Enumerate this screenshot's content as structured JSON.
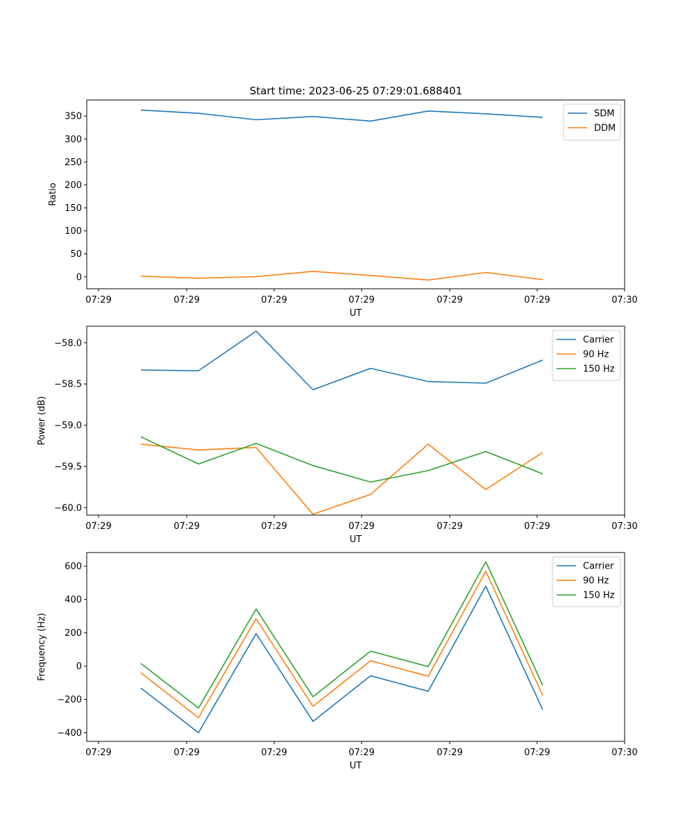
{
  "figure": {
    "title": "Start time: 2023-06-25 07:29:01.688401"
  },
  "chart_data": [
    {
      "type": "line",
      "xlabel": "UT",
      "ylabel": "Ratio",
      "x_tick_labels": [
        "07:29",
        "07:29",
        "07:29",
        "07:29",
        "07:29",
        "07:29",
        "07:30"
      ],
      "y_ticks": [
        0,
        50,
        100,
        150,
        200,
        250,
        300,
        350
      ],
      "y_tick_labels": [
        "0",
        "50",
        "100",
        "150",
        "200",
        "250",
        "300",
        "350"
      ],
      "ylim": [
        -26,
        385
      ],
      "legend_position": "upper right",
      "grid": false,
      "series": [
        {
          "name": "SDM",
          "color": "#1f77b4",
          "values": [
            363,
            356,
            342,
            349,
            339,
            361,
            355,
            347
          ]
        },
        {
          "name": "DDM",
          "color": "#ff7f0e",
          "values": [
            1.5,
            -3,
            0.5,
            12,
            3,
            -7,
            9.5,
            -6
          ]
        }
      ]
    },
    {
      "type": "line",
      "xlabel": "UT",
      "ylabel": "Power (dB)",
      "x_tick_labels": [
        "07:29",
        "07:29",
        "07:29",
        "07:29",
        "07:29",
        "07:29",
        "07:30"
      ],
      "y_ticks": [
        -58.0,
        -58.5,
        -59.0,
        -59.5,
        -60.0
      ],
      "y_tick_labels": [
        "−58.0",
        "−58.5",
        "−59.0",
        "−59.5",
        "−60.0"
      ],
      "ylim": [
        -60.09,
        -57.8
      ],
      "legend_position": "upper right",
      "grid": false,
      "series": [
        {
          "name": "Carrier",
          "color": "#1f77b4",
          "values": [
            -58.33,
            -58.34,
            -57.86,
            -58.57,
            -58.31,
            -58.47,
            -58.49,
            -58.21
          ]
        },
        {
          "name": "90 Hz",
          "color": "#ff7f0e",
          "values": [
            -59.23,
            -59.3,
            -59.27,
            -60.08,
            -59.84,
            -59.23,
            -59.78,
            -59.33
          ]
        },
        {
          "name": "150 Hz",
          "color": "#2ca02c",
          "values": [
            -59.14,
            -59.47,
            -59.22,
            -59.49,
            -59.69,
            -59.55,
            -59.32,
            -59.59
          ]
        }
      ]
    },
    {
      "type": "line",
      "xlabel": "UT",
      "ylabel": "Frequency (Hz)",
      "x_tick_labels": [
        "07:29",
        "07:29",
        "07:29",
        "07:29",
        "07:29",
        "07:29",
        "07:30"
      ],
      "y_ticks": [
        -400,
        -200,
        0,
        200,
        400,
        600
      ],
      "y_tick_labels": [
        "−400",
        "−200",
        "0",
        "200",
        "400",
        "600"
      ],
      "ylim": [
        -452,
        682
      ],
      "legend_position": "upper right",
      "grid": false,
      "series": [
        {
          "name": "Carrier",
          "color": "#1f77b4",
          "values": [
            -132,
            -400,
            195,
            -332,
            -58,
            -151,
            480,
            -262
          ]
        },
        {
          "name": "90 Hz",
          "color": "#ff7f0e",
          "values": [
            -40,
            -310,
            285,
            -242,
            32,
            -61,
            570,
            -176
          ]
        },
        {
          "name": "150 Hz",
          "color": "#2ca02c",
          "values": [
            16,
            -252,
            343,
            -184,
            90,
            -3,
            627,
            -115
          ]
        }
      ]
    }
  ]
}
